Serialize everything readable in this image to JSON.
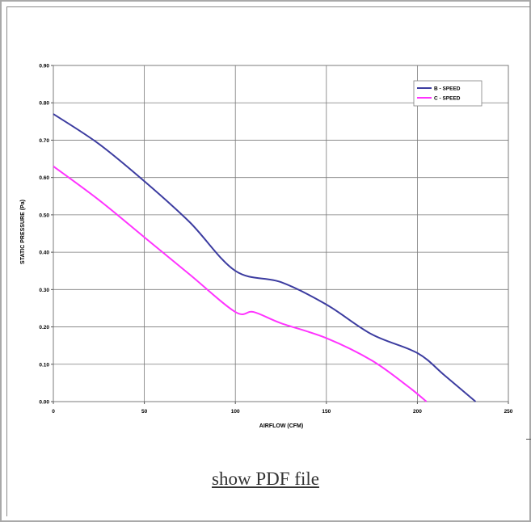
{
  "chart_data": {
    "type": "line",
    "xlabel": "AIRFLOW (CFM)",
    "ylabel": "STATIC PRESSURE (Pa)",
    "xlim": [
      0,
      250
    ],
    "ylim": [
      0,
      0.9
    ],
    "x_ticks": [
      "0",
      "50",
      "100",
      "150",
      "200",
      "250"
    ],
    "y_ticks": [
      "0.00",
      "0.10",
      "0.20",
      "0.30",
      "0.40",
      "0.50",
      "0.60",
      "0.70",
      "0.80",
      "0.90"
    ],
    "grid": true,
    "legend_position": "top-right",
    "series": [
      {
        "name": "B - SPEED",
        "color": "#3c3ca0",
        "x": [
          0,
          25,
          50,
          75,
          100,
          125,
          150,
          175,
          200,
          215,
          232
        ],
        "y": [
          0.77,
          0.69,
          0.59,
          0.48,
          0.35,
          0.32,
          0.26,
          0.18,
          0.13,
          0.07,
          0.0
        ]
      },
      {
        "name": "C - SPEED",
        "color": "#ff33ff",
        "x": [
          0,
          25,
          50,
          75,
          100,
          110,
          125,
          150,
          175,
          195,
          205
        ],
        "y": [
          0.63,
          0.54,
          0.44,
          0.34,
          0.24,
          0.24,
          0.21,
          0.17,
          0.11,
          0.04,
          0.0
        ]
      }
    ]
  },
  "link_label": "show PDF file"
}
